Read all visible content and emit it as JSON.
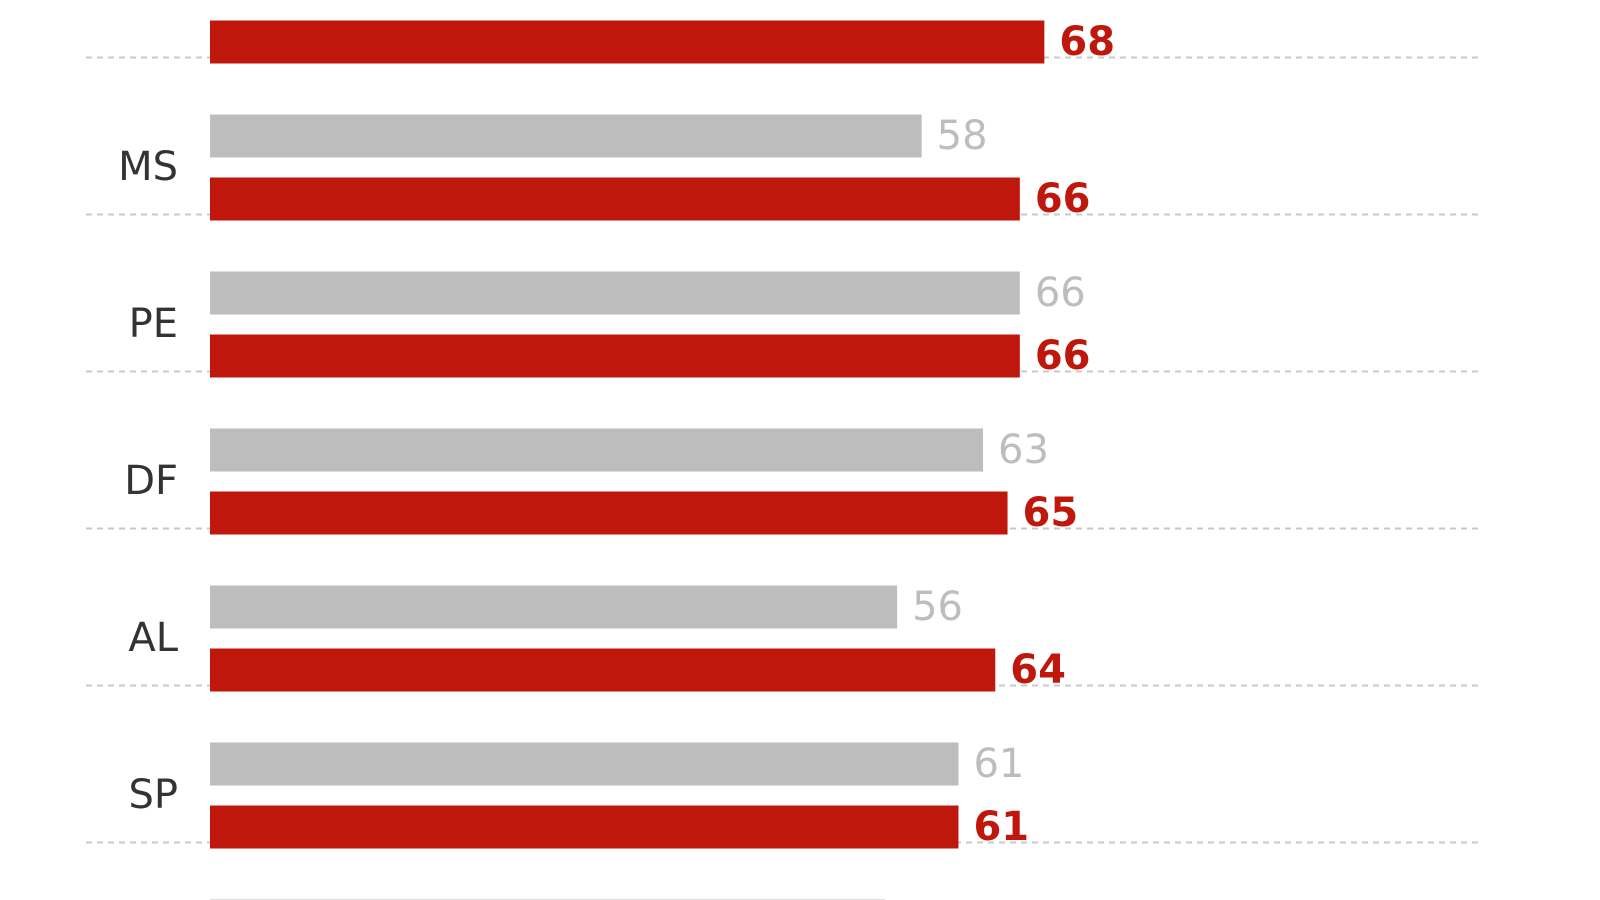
{
  "colors": {
    "previous": "#bdbdbd",
    "current": "#c0170c",
    "separator": "#c8c8c8",
    "category_text": "#333333"
  },
  "chart_data": {
    "type": "bar",
    "orientation": "horizontal",
    "categories": [
      "",
      "MS",
      "PE",
      "DF",
      "AL",
      "SP",
      ""
    ],
    "series": [
      {
        "values": [
          null,
          58,
          66,
          63,
          56,
          61,
          55
        ],
        "color": "#bdbdbd"
      },
      {
        "values": [
          68,
          66,
          66,
          65,
          64,
          61,
          null
        ],
        "color": "#c0170c"
      }
    ],
    "title": "",
    "xlabel": "",
    "ylabel": "",
    "grid": false,
    "legend": "none"
  }
}
